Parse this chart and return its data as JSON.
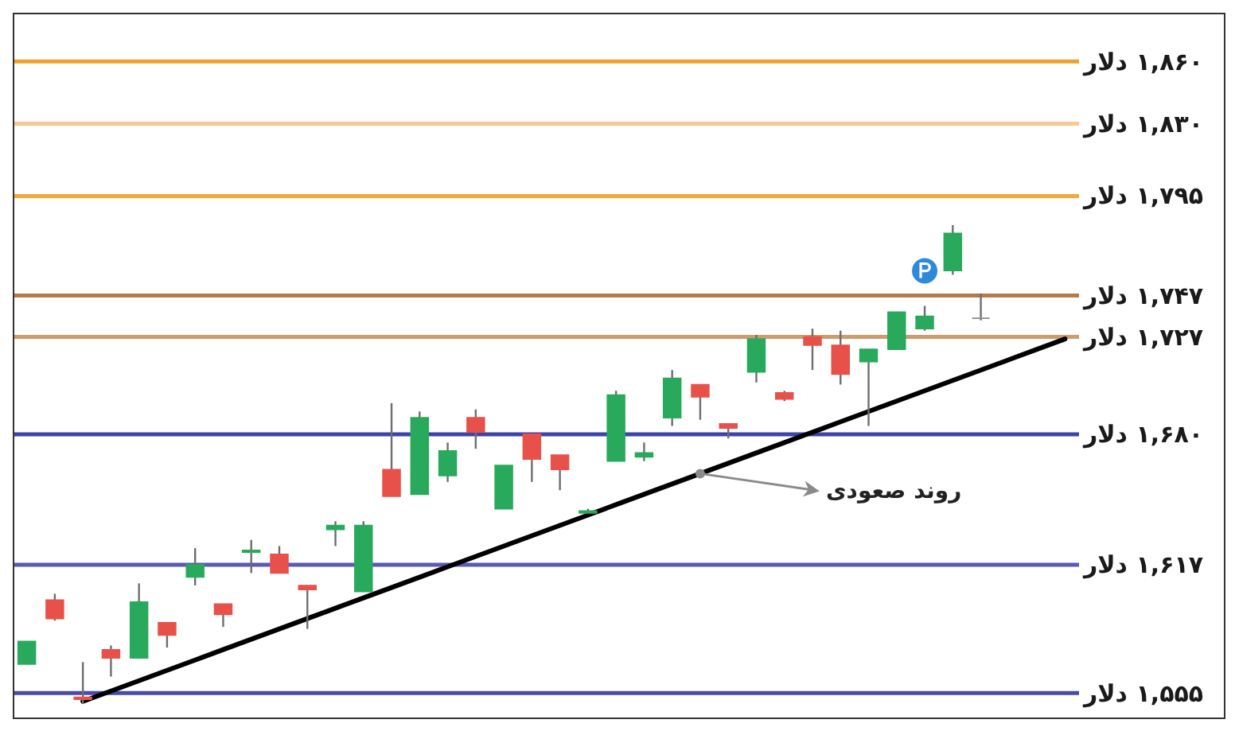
{
  "chart_data": {
    "type": "candlestick",
    "categories": [
      null,
      null,
      null,
      null,
      null,
      null,
      null,
      null,
      null,
      null,
      null,
      null,
      null,
      null,
      null,
      null,
      null,
      null,
      null,
      null,
      null,
      null,
      null,
      null,
      null,
      null,
      null,
      null,
      null,
      null,
      null,
      null,
      null,
      null,
      null,
      null,
      null,
      null
    ],
    "ohlc": [
      [
        1569,
        1580,
        1569,
        1580
      ],
      [
        1600,
        1603,
        1590,
        1591
      ],
      [
        1553,
        1570,
        1550,
        1552
      ],
      [
        1576,
        1578,
        1563,
        1572
      ],
      [
        1572,
        1608,
        1572,
        1599
      ],
      [
        1589,
        1589,
        1577,
        1583
      ],
      [
        1611,
        1625,
        1607,
        1617
      ],
      [
        1598,
        1598,
        1587,
        1593
      ],
      [
        1623,
        1629,
        1613,
        1624
      ],
      [
        1622,
        1626,
        1613,
        1613
      ],
      [
        1607,
        1607,
        1586,
        1605
      ],
      [
        1634,
        1638,
        1626,
        1636
      ],
      [
        1604,
        1638,
        1604,
        1636
      ],
      [
        1663,
        1695,
        1650,
        1650
      ],
      [
        1651,
        1691,
        1651,
        1688
      ],
      [
        1660,
        1676,
        1657,
        1672
      ],
      [
        1688,
        1692,
        1673,
        1681
      ],
      [
        1644,
        1665,
        1644,
        1665
      ],
      [
        1680,
        1680,
        1657,
        1668
      ],
      [
        1670,
        1670,
        1653,
        1663
      ],
      [
        1642,
        1644,
        1642,
        1643
      ],
      [
        1667,
        1701,
        1667,
        1699
      ],
      [
        1669,
        1676,
        1667,
        1671
      ],
      [
        1688,
        1711,
        1684,
        1707
      ],
      [
        1704,
        1704,
        1687,
        1698
      ],
      [
        1685,
        1685,
        1678,
        1683
      ],
      [
        1710,
        1728,
        1705,
        1726
      ],
      [
        1700,
        1701,
        1696,
        1697
      ],
      [
        1727,
        1731,
        1711,
        1723
      ],
      [
        1723,
        1730,
        1704,
        1709
      ],
      [
        1715,
        1721,
        1684,
        1721
      ],
      [
        1721,
        1739,
        1721,
        1739
      ],
      [
        1731,
        1742,
        1730,
        1737
      ],
      [
        1759,
        1781,
        1757,
        1777
      ],
      [
        1736,
        1748,
        1735,
        1736
      ],
      null,
      null,
      null
    ],
    "colors": [
      "#28a95c",
      "#e8504a",
      "#e8504a",
      "#e8504a",
      "#28a95c",
      "#e8504a",
      "#28a95c",
      "#e8504a",
      "#28a95c",
      "#e8504a",
      "#e8504a",
      "#28a95c",
      "#28a95c",
      "#e8504a",
      "#28a95c",
      "#28a95c",
      "#e8504a",
      "#28a95c",
      "#e8504a",
      "#e8504a",
      "#28a95c",
      "#28a95c",
      "#28a95c",
      "#28a95c",
      "#e8504a",
      "#e8504a",
      "#28a95c",
      "#e8504a",
      "#e8504a",
      "#e8504a",
      "#28a95c",
      "#28a95c",
      "#28a95c",
      "#28a95c",
      "#8c8c8c",
      null,
      null,
      null
    ],
    "ylim": [
      1544,
      1882
    ],
    "tick_labels": false,
    "series": [
      {
        "type": "line",
        "color": "#000000",
        "values": [
          null,
          null,
          1551,
          1556,
          1561,
          1566,
          1571,
          1576,
          1581,
          1586,
          1591,
          1596,
          1601,
          1606,
          1611,
          1616,
          1621,
          1626,
          1631,
          1636,
          1641,
          1646,
          1651,
          1656,
          1661,
          1666,
          1671,
          1676,
          1681,
          1686,
          1691,
          1696,
          1701,
          1706,
          1711,
          1716,
          1721,
          1726
        ]
      }
    ],
    "ref_lines": [
      {
        "axis": "y",
        "value": 1860,
        "label": "۱,۸۶۰ دلار",
        "color": "#f0a030"
      },
      {
        "axis": "y",
        "value": 1830,
        "label": "۱,۸۳۰ دلار",
        "color": "#f8c890"
      },
      {
        "axis": "y",
        "value": 1795,
        "label": "۱,۷۹۵ دلار",
        "color": "#f2a93b"
      },
      {
        "axis": "y",
        "value": 1747,
        "label": "۱,۷۴۷ دلار",
        "color": "#b87a4a"
      },
      {
        "axis": "y",
        "value": 1727,
        "label": "۱,۷۲۷ دلار",
        "color": "#cc9c6c"
      },
      {
        "axis": "y",
        "value": 1680,
        "label": "۱,۶۸۰ دلار",
        "color": "#3d44a8"
      },
      {
        "axis": "y",
        "value": 1617,
        "label": "۱,۶۱۷ دلار",
        "color": "#5a5ab5"
      },
      {
        "axis": "y",
        "value": 1555,
        "label": "۱,۵۵۵ دلار",
        "color": "#4a4aa8"
      }
    ],
    "annotations": [
      "روند صعودی"
    ]
  }
}
